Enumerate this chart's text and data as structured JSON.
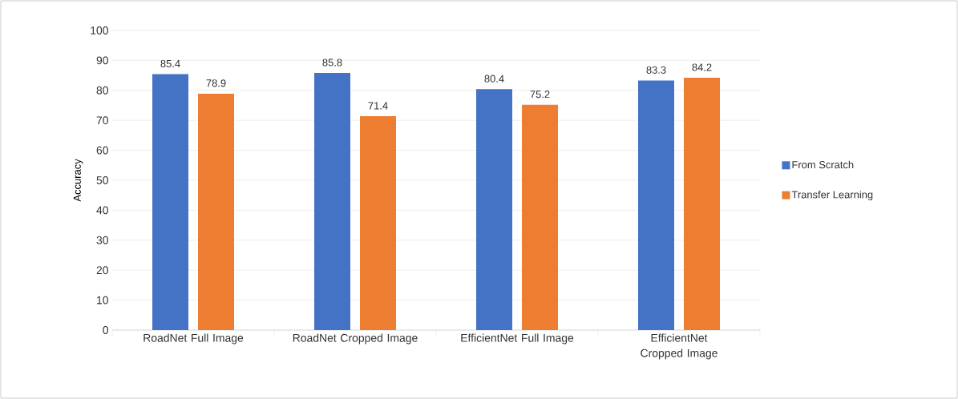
{
  "chart_data": {
    "type": "bar",
    "ylabel": "Accuracy",
    "categories": [
      "RoadNet Full Image",
      "RoadNet Cropped Image",
      "EfficientNet Full Image",
      "EfficientNet Cropped Image"
    ],
    "series": [
      {
        "name": "From Scratch",
        "color": "#4472c4",
        "values": [
          85.4,
          85.8,
          80.4,
          83.3
        ]
      },
      {
        "name": "Transfer Learning",
        "color": "#ed7d31",
        "values": [
          78.9,
          71.4,
          75.2,
          84.2
        ]
      }
    ],
    "ylim": [
      0,
      100
    ],
    "yticks": [
      0,
      10,
      20,
      30,
      40,
      50,
      60,
      70,
      80,
      90,
      100
    ],
    "grid": "y",
    "legend": "right",
    "data_labels": true
  }
}
